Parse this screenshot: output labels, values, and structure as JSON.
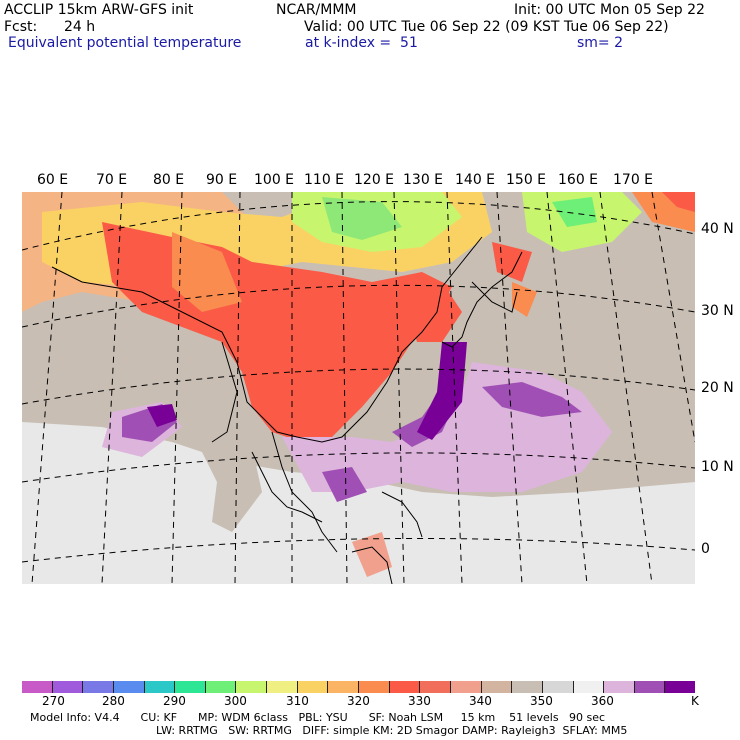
{
  "header": {
    "model": "ACCLIP 15km ARW-GFS init",
    "org": "NCAR/MMM",
    "init": "Init: 00 UTC Mon 05 Sep 22",
    "fcst_label": "Fcst:",
    "fcst_value": "24 h",
    "valid": "Valid: 00 UTC Tue 06 Sep 22 (09 KST Tue 06 Sep 22)",
    "field": "Equivalent potential temperature",
    "level": "at k-index =  51",
    "smooth": "sm= 2"
  },
  "lon_labels": [
    "60 E",
    "70 E",
    "80 E",
    "90 E",
    "100 E",
    "110 E",
    "120 E",
    "130 E",
    "140 E",
    "150 E",
    "160 E",
    "170 E"
  ],
  "lat_labels": [
    "40 N",
    "30 N",
    "20 N",
    "10 N",
    "0"
  ],
  "colorbar": {
    "colors": [
      "#c85ac8",
      "#a05adc",
      "#7878e6",
      "#5a8cf0",
      "#2cc8c8",
      "#2ce696",
      "#6ef078",
      "#c8f56e",
      "#f0f082",
      "#fad264",
      "#fab464",
      "#fa8c50",
      "#fa5a46",
      "#f06e5a",
      "#f0a08c",
      "#d2b4a0",
      "#c8beb4",
      "#d7d7d7",
      "#f0f0f0",
      "#dcb4dc",
      "#a050b4",
      "#780096"
    ],
    "labels": [
      "270",
      "280",
      "290",
      "300",
      "310",
      "320",
      "330",
      "340",
      "350",
      "360",
      "K"
    ]
  },
  "footer": {
    "line1": "Model Info: V4.4      CU: KF      MP: WDM 6class   PBL: YSU      SF: Noah LSM     15 km    51 levels   90 sec",
    "line2": "LW: RRTMG   SW: RRTMG   DIFF: simple KM: 2D Smagor DAMP: Rayleigh3  SFLAY: MM5"
  }
}
